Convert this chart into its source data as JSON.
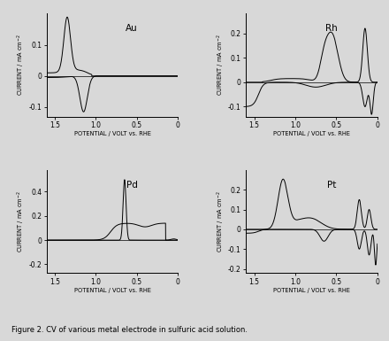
{
  "background": "#e8e8e8",
  "figure_caption": "Figure 2. CV of various metal electrode in sulfuric acid solution.",
  "panels": [
    {
      "label": "Au",
      "ylim": [
        -0.13,
        0.2
      ],
      "yticks": [
        -0.1,
        0.0,
        0.1
      ],
      "yticklabels": [
        "-0.1",
        "0",
        "0.1"
      ]
    },
    {
      "label": "Rh",
      "ylim": [
        -0.14,
        0.28
      ],
      "yticks": [
        -0.1,
        0.0,
        0.1,
        0.2
      ],
      "yticklabels": [
        "-0.1",
        "0",
        "0.1",
        "0.2"
      ]
    },
    {
      "label": "Pd",
      "ylim": [
        -0.27,
        0.58
      ],
      "yticks": [
        -0.2,
        0.0,
        0.2,
        0.4
      ],
      "yticklabels": [
        "-0.2",
        "0",
        "0.2",
        "0.4"
      ]
    },
    {
      "label": "Pt",
      "ylim": [
        -0.22,
        0.3
      ],
      "yticks": [
        -0.2,
        -0.1,
        0.0,
        0.1,
        0.2
      ],
      "yticklabels": [
        "-0.2",
        "-0.1",
        "0",
        "0.1",
        "0.2"
      ]
    }
  ],
  "xlim": [
    1.6,
    0.0
  ],
  "xticks": [
    1.5,
    1.0,
    0.5,
    0
  ],
  "xticklabels": [
    "1.5",
    "1.0",
    "0.5",
    "0"
  ]
}
